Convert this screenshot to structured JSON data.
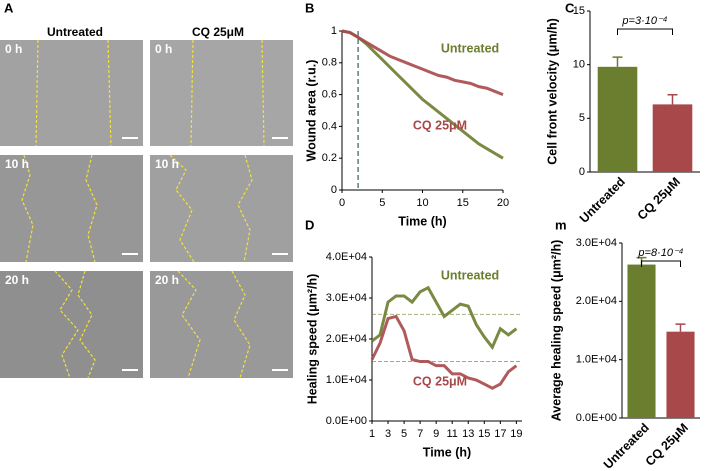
{
  "image_panel": {
    "panel": "A",
    "columns": [
      "Untreated",
      "CQ 25μM"
    ],
    "rows": [
      "0 h",
      "10 h",
      "20 h"
    ]
  },
  "chart_data": [
    {
      "type": "line",
      "panel": "B",
      "xlabel": "Time (h)",
      "ylabel": "Wound area (r.u.)",
      "x": [
        0,
        1,
        2,
        3,
        4,
        5,
        6,
        7,
        8,
        9,
        10,
        11,
        12,
        13,
        14,
        15,
        16,
        17,
        18,
        19,
        20
      ],
      "xlim": [
        0,
        20
      ],
      "xticks": [
        0,
        5,
        10,
        15,
        20
      ],
      "ylim": [
        0,
        1
      ],
      "yticks": [
        0,
        0.2,
        0.4,
        0.6,
        0.8,
        1
      ],
      "marker_x": 2,
      "series": [
        {
          "name": "Untreated",
          "color": "#6b7d2f",
          "values": [
            1,
            0.99,
            0.96,
            0.92,
            0.87,
            0.82,
            0.77,
            0.72,
            0.67,
            0.62,
            0.57,
            0.53,
            0.49,
            0.45,
            0.41,
            0.37,
            0.33,
            0.29,
            0.26,
            0.23,
            0.2
          ]
        },
        {
          "name": "CQ 25μM",
          "color": "#a8484a",
          "values": [
            1,
            0.99,
            0.96,
            0.93,
            0.9,
            0.87,
            0.84,
            0.82,
            0.8,
            0.78,
            0.76,
            0.74,
            0.72,
            0.71,
            0.69,
            0.68,
            0.67,
            0.65,
            0.64,
            0.62,
            0.6
          ]
        }
      ]
    },
    {
      "type": "bar",
      "panel": "C",
      "ylabel": "Cell front velocity (μm/h)",
      "categories": [
        "Untreated",
        "CQ 25μM"
      ],
      "values": [
        9.8,
        6.3
      ],
      "errors": [
        0.9,
        0.9
      ],
      "colors": [
        "#6b7d2f",
        "#a8484a"
      ],
      "ylim": [
        0,
        15
      ],
      "yticks": [
        0,
        5,
        10,
        15
      ],
      "annotation": "p=3·10⁻⁴"
    },
    {
      "type": "line",
      "panel": "D",
      "xlabel": "Time (h)",
      "ylabel": "Healing speed (μm²/h)",
      "x": [
        1,
        2,
        3,
        4,
        5,
        6,
        7,
        8,
        9,
        10,
        11,
        12,
        13,
        14,
        15,
        16,
        17,
        18,
        19
      ],
      "xlim": [
        1,
        19.7
      ],
      "xticks": [
        1,
        3,
        5,
        7,
        9,
        11,
        13,
        15,
        17,
        19
      ],
      "ylim": [
        0,
        40000
      ],
      "yticks": [
        {
          "value": 0,
          "label": "0.0E+00"
        },
        {
          "value": 10000,
          "label": "1.0E+04"
        },
        {
          "value": 20000,
          "label": "2.0E+04"
        },
        {
          "value": 30000,
          "label": "3.0E+04"
        },
        {
          "value": 40000,
          "label": "4.0E+04"
        }
      ],
      "averages": [
        26000,
        14500
      ],
      "series": [
        {
          "name": "Untreated",
          "color": "#6b7d2f",
          "values": [
            19500,
            21000,
            29000,
            30500,
            30500,
            29000,
            31500,
            32500,
            29000,
            25500,
            27000,
            28500,
            28000,
            23500,
            20500,
            18000,
            22500,
            21000,
            22500
          ]
        },
        {
          "name": "CQ 25μM",
          "color": "#a8484a",
          "values": [
            15000,
            19000,
            25000,
            25500,
            22000,
            15000,
            14500,
            14500,
            13500,
            13500,
            11500,
            11500,
            10500,
            10000,
            9000,
            8000,
            9000,
            12000,
            13500
          ]
        }
      ]
    },
    {
      "type": "bar",
      "panel": "m",
      "ylabel": "Average healing speed (μm²/h)",
      "categories": [
        "Untreated",
        "CQ 25μM"
      ],
      "values": [
        26300,
        14800
      ],
      "errors": [
        1200,
        1300
      ],
      "colors": [
        "#6b7d2f",
        "#a8484a"
      ],
      "ylim": [
        0,
        30000
      ],
      "yticks": [
        {
          "value": 0,
          "label": "0.0E+00"
        },
        {
          "value": 10000,
          "label": "1.0E+04"
        },
        {
          "value": 20000,
          "label": "2.0E+04"
        },
        {
          "value": 30000,
          "label": "3.0E+04"
        }
      ],
      "annotation": "p=8·10⁻⁴"
    }
  ]
}
